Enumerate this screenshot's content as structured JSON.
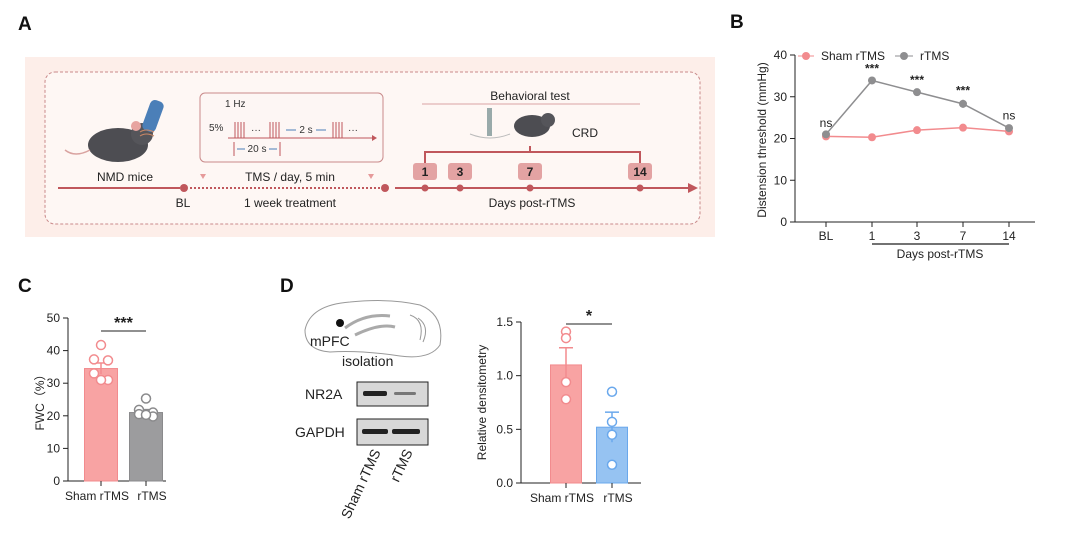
{
  "panels": {
    "a": "A",
    "b": "B",
    "c": "C",
    "d": "D"
  },
  "colors": {
    "sham": "#f28b8e",
    "sham_fill": "#f8a3a3",
    "rtms": "#8e8e90",
    "rtms_fill": "#9c9c9e",
    "rtms_blue": "#6aa8ec",
    "rtms_blue_fill": "#96c3f2",
    "diagram": "#c0575c",
    "diagram_bg": "#fdeee9"
  },
  "diagram": {
    "nmd_mice": "NMD mice",
    "bl": "BL",
    "tms_day": "TMS / day, 5 min",
    "week_treatment": "1 week treatment",
    "freq": "1 Hz",
    "intensity": "5%",
    "dots": "···",
    "interval": "2 s",
    "train": "20 s",
    "behavioral_test": "Behavioral test",
    "crd": "CRD",
    "days_label": "Days post-rTMS",
    "days": [
      "1",
      "3",
      "7",
      "14"
    ]
  },
  "blot": {
    "region": "mPFC",
    "isolation": "isolation",
    "rows": [
      "NR2A",
      "GAPDH"
    ],
    "lanes": [
      "Sham rTMS",
      "rTMS"
    ]
  },
  "chart_data": [
    {
      "id": "B",
      "type": "line",
      "title": "",
      "xlabel": "Days post-rTMS",
      "ylabel": "Distension threshold (mmHg)",
      "categories": [
        "BL",
        "1",
        "3",
        "7",
        "14"
      ],
      "ylim": [
        0,
        40
      ],
      "yticks": [
        "0",
        "10",
        "20",
        "30",
        "40"
      ],
      "legend": "top-left",
      "series": [
        {
          "name": "Sham rTMS",
          "values": [
            20.5,
            20.3,
            22.0,
            22.6,
            21.7
          ],
          "errors": [
            0.7,
            0.7,
            0.9,
            0.9,
            0.6
          ]
        },
        {
          "name": "rTMS",
          "values": [
            21.0,
            33.9,
            31.1,
            28.3,
            22.5
          ],
          "errors": [
            0.6,
            0.7,
            0.7,
            1.0,
            0.8
          ]
        }
      ],
      "annotations": [
        "ns",
        "***",
        "***",
        "***",
        "ns"
      ]
    },
    {
      "id": "C",
      "type": "bar",
      "ylabel": "FWC（%）",
      "categories": [
        "Sham rTMS",
        "rTMS"
      ],
      "values": [
        34.5,
        21.0
      ],
      "errors": [
        1.7,
        0.9
      ],
      "points": [
        [
          41.7,
          37.3,
          37.0,
          33.0,
          31.0,
          31.0
        ],
        [
          25.3,
          21.8,
          21.0,
          20.5,
          19.8,
          20.3
        ]
      ],
      "ylim": [
        0,
        50
      ],
      "yticks": [
        "0",
        "10",
        "20",
        "30",
        "40",
        "50"
      ],
      "significance": "***"
    },
    {
      "id": "D",
      "type": "bar",
      "ylabel": "Relative densitometry",
      "categories": [
        "Sham rTMS",
        "rTMS"
      ],
      "values": [
        1.1,
        0.52
      ],
      "errors": [
        0.16,
        0.14
      ],
      "points": [
        [
          1.41,
          1.35,
          0.94,
          0.78
        ],
        [
          0.85,
          0.57,
          0.45,
          0.17
        ]
      ],
      "ylim": [
        0,
        1.5
      ],
      "yticks": [
        "0.0",
        "0.5",
        "1.0",
        "1.5"
      ],
      "significance": "*"
    }
  ]
}
